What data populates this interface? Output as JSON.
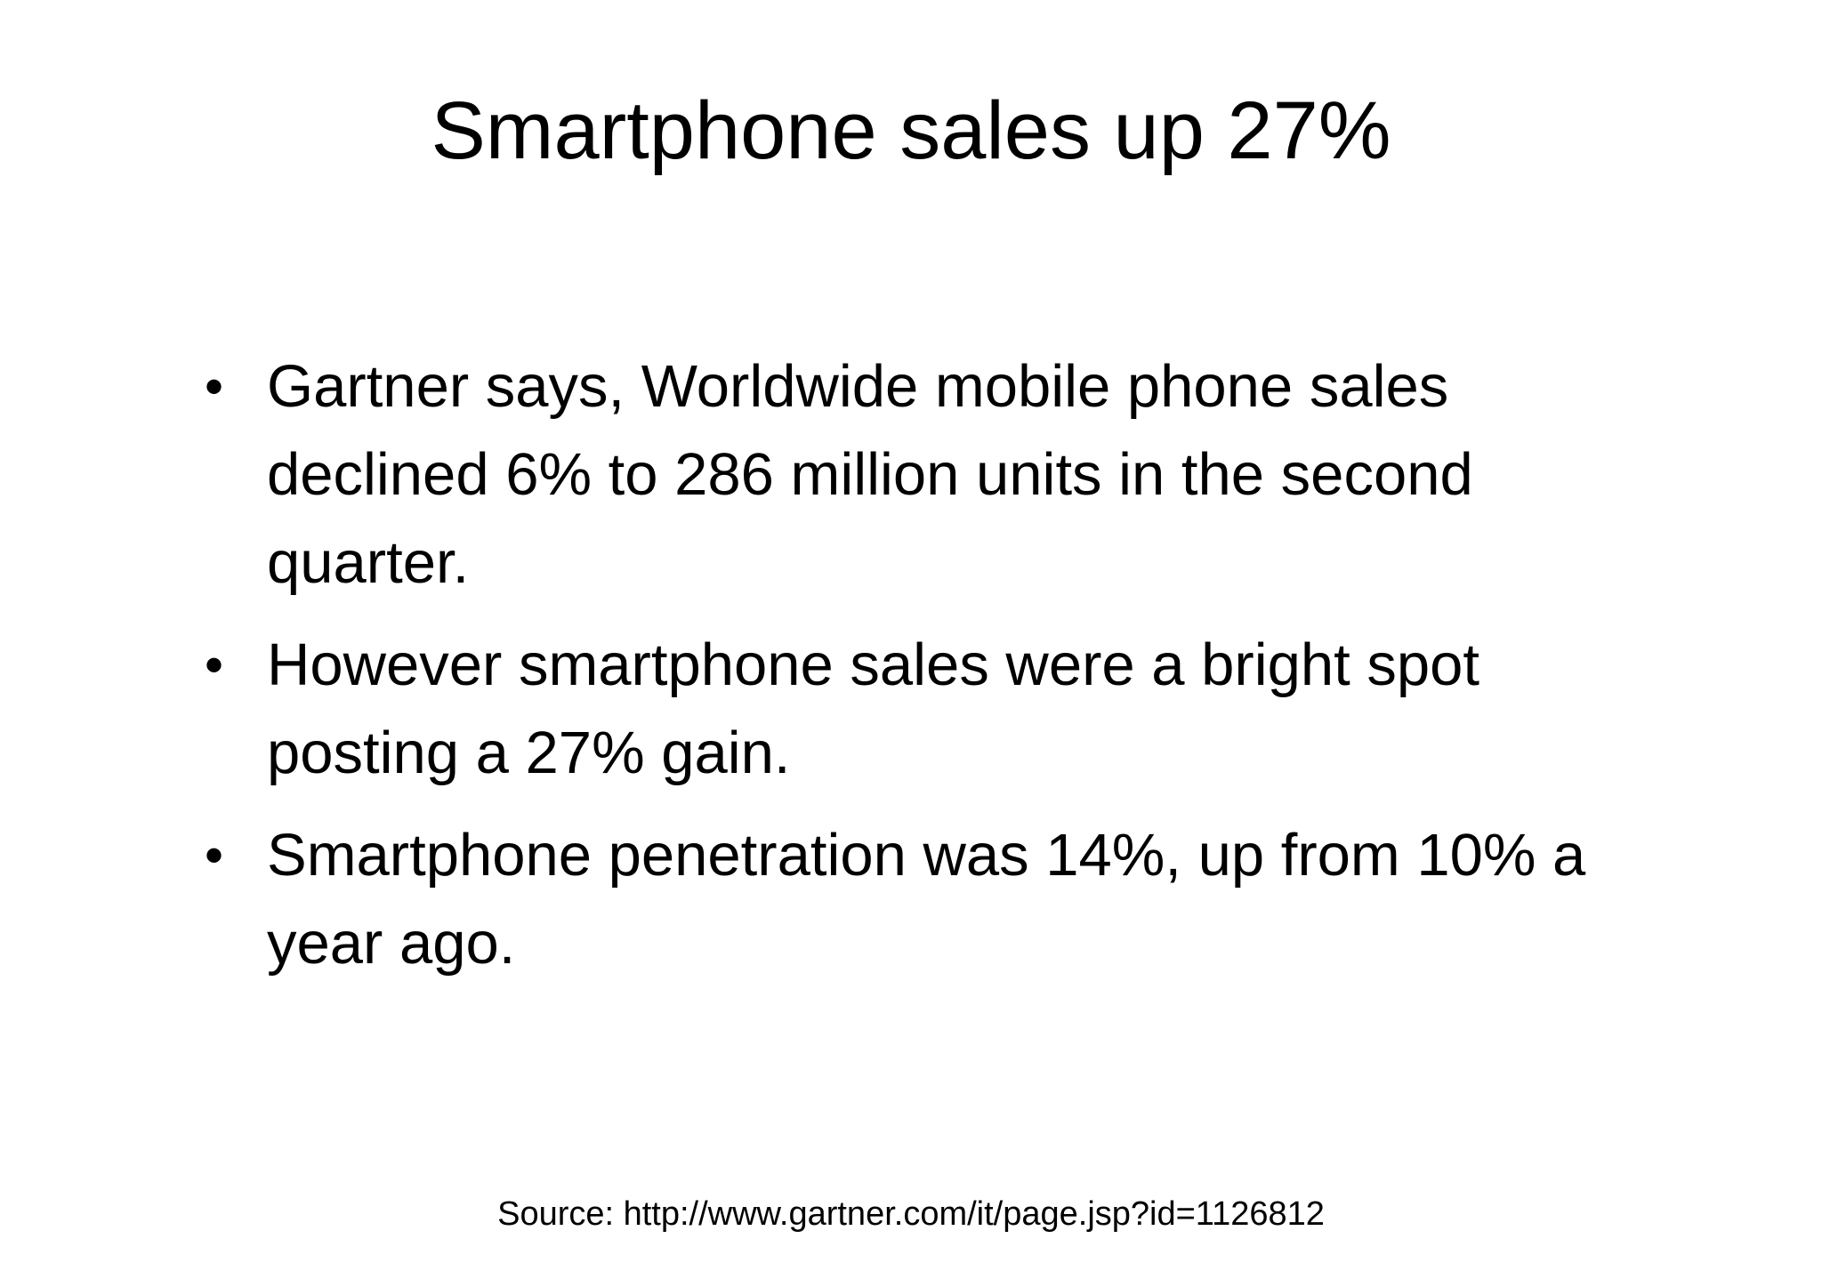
{
  "slide": {
    "title": "Smartphone sales up 27%",
    "bullets": [
      {
        "marker": "•",
        "text": "Gartner says, Worldwide mobile phone sales declined 6% to 286 million units in the second quarter."
      },
      {
        "marker": "•",
        "text": "However smartphone sales were a bright spot posting a 27% gain."
      },
      {
        "marker": "•",
        "text": "Smartphone penetration was 14%, up from 10% a year ago."
      }
    ],
    "source": "Source: http://www.gartner.com/it/page.jsp?id=1126812"
  },
  "colors": {
    "background": "#ffffff",
    "text": "#000000"
  }
}
